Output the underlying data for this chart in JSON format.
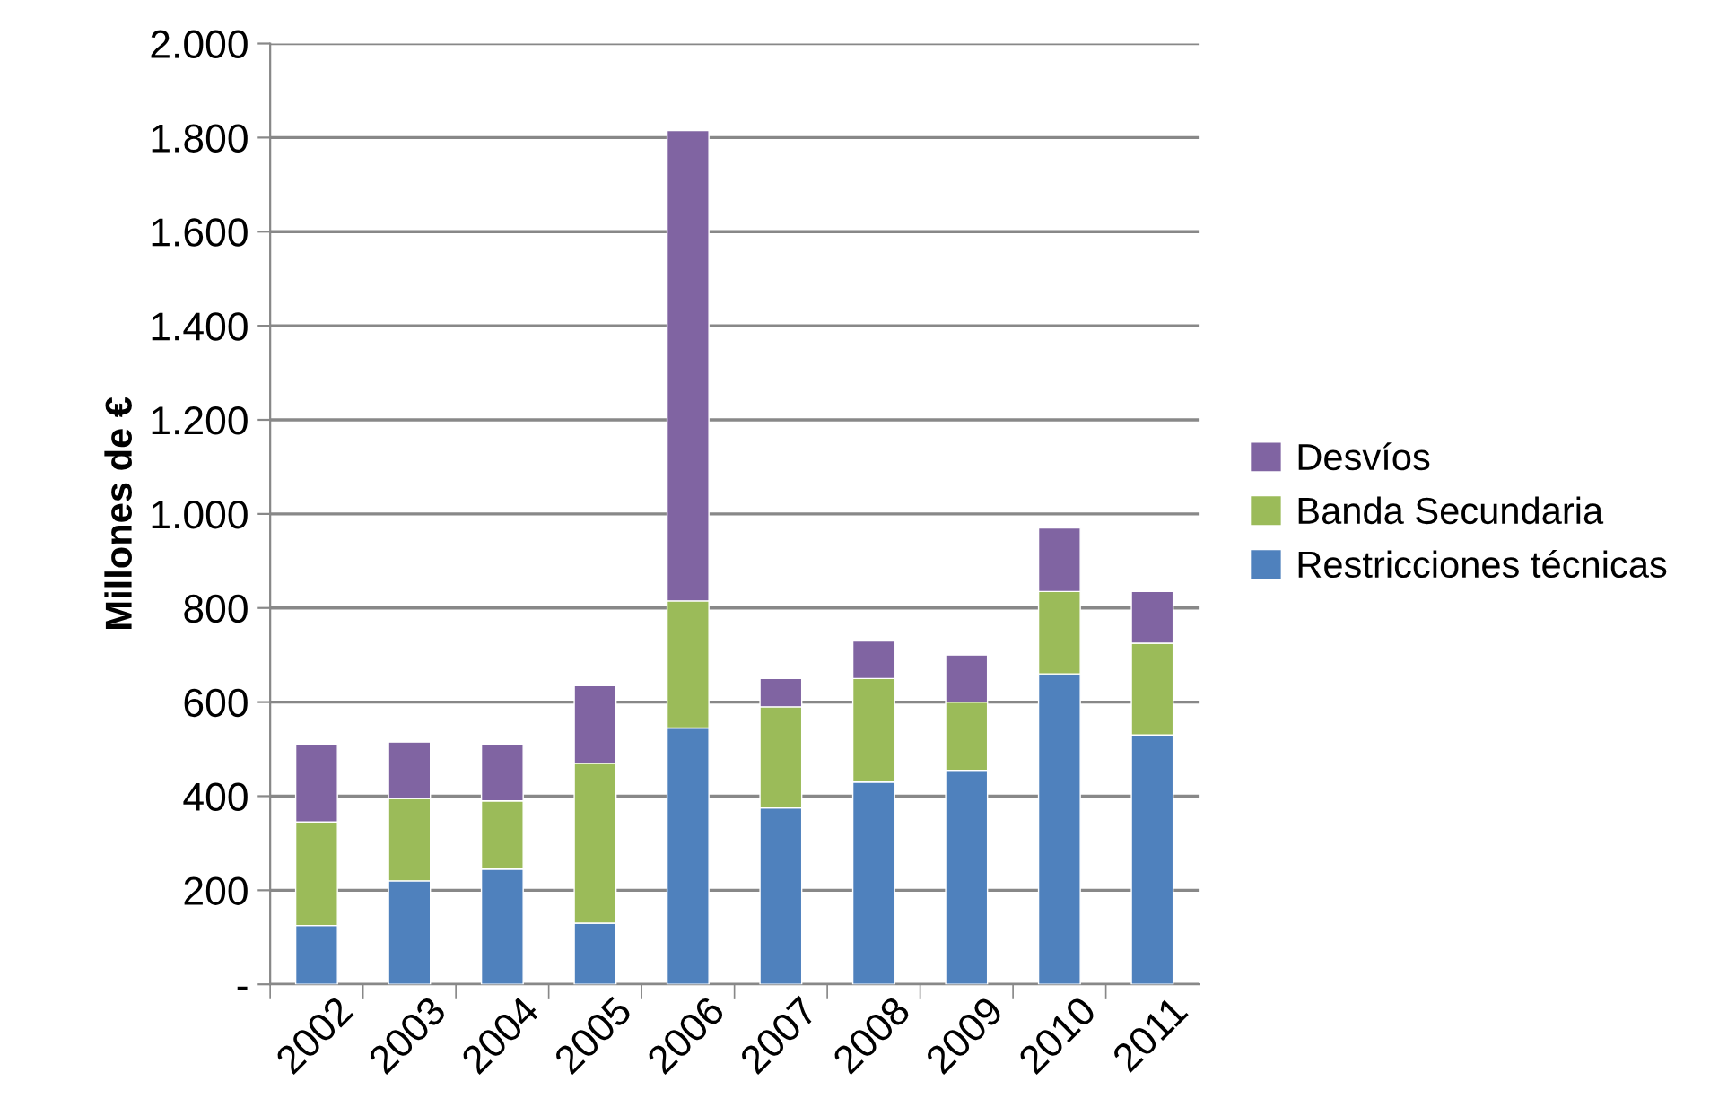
{
  "chart_data": {
    "type": "bar",
    "stacked": true,
    "ylabel": "Millones de €",
    "categories": [
      "2002",
      "2003",
      "2004",
      "2005",
      "2006",
      "2007",
      "2008",
      "2009",
      "2010",
      "2011"
    ],
    "series": [
      {
        "name": "Restricciones técnicas",
        "color": "#4f81bd",
        "values": [
          125,
          220,
          245,
          130,
          545,
          375,
          430,
          455,
          660,
          530
        ]
      },
      {
        "name": "Banda Secundaria",
        "color": "#9bbb59",
        "values": [
          220,
          175,
          145,
          340,
          270,
          215,
          220,
          145,
          175,
          195
        ]
      },
      {
        "name": "Desvíos",
        "color": "#8064a2",
        "values": [
          165,
          120,
          120,
          165,
          1000,
          60,
          80,
          100,
          135,
          110
        ]
      }
    ],
    "ylim": [
      0,
      2000
    ],
    "yticks": [
      {
        "value": 0,
        "label": "-"
      },
      {
        "value": 200,
        "label": "200"
      },
      {
        "value": 400,
        "label": "400"
      },
      {
        "value": 600,
        "label": "600"
      },
      {
        "value": 800,
        "label": "800"
      },
      {
        "value": 1000,
        "label": "1.000"
      },
      {
        "value": 1200,
        "label": "1.200"
      },
      {
        "value": 1400,
        "label": "1.400"
      },
      {
        "value": 1600,
        "label": "1.600"
      },
      {
        "value": 1800,
        "label": "1.800"
      },
      {
        "value": 2000,
        "label": "2.000"
      }
    ],
    "grid": "y",
    "legend": "right"
  }
}
